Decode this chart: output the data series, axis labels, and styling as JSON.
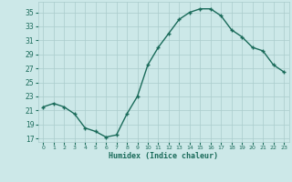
{
  "x": [
    0,
    1,
    2,
    3,
    4,
    5,
    6,
    7,
    8,
    9,
    10,
    11,
    12,
    13,
    14,
    15,
    16,
    17,
    18,
    19,
    20,
    21,
    22,
    23
  ],
  "y": [
    21.5,
    22.0,
    21.5,
    20.5,
    18.5,
    18.0,
    17.2,
    17.5,
    20.5,
    23.0,
    27.5,
    30.0,
    32.0,
    34.0,
    35.0,
    35.5,
    35.5,
    34.5,
    32.5,
    31.5,
    30.0,
    29.5,
    27.5,
    26.5
  ],
  "title": "",
  "xlabel": "Humidex (Indice chaleur)",
  "ylabel": "",
  "xlim": [
    -0.5,
    23.5
  ],
  "ylim": [
    16.5,
    36.5
  ],
  "yticks": [
    17,
    19,
    21,
    23,
    25,
    27,
    29,
    31,
    33,
    35
  ],
  "xticks": [
    0,
    1,
    2,
    3,
    4,
    5,
    6,
    7,
    8,
    9,
    10,
    11,
    12,
    13,
    14,
    15,
    16,
    17,
    18,
    19,
    20,
    21,
    22,
    23
  ],
  "line_color": "#1a6b5a",
  "marker_color": "#1a6b5a",
  "bg_color": "#cce8e8",
  "grid_color": "#aacccc",
  "axis_label_color": "#1a6b5a",
  "tick_color": "#1a6b5a"
}
